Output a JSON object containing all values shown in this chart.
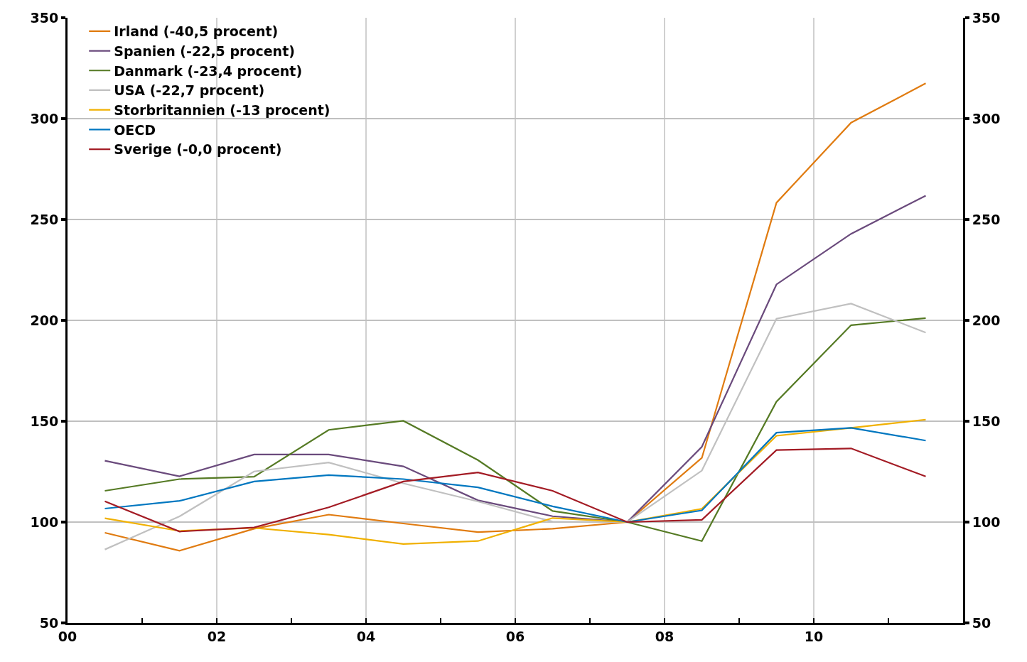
{
  "chart_data": {
    "type": "line",
    "x": [
      0.5,
      1.5,
      2.5,
      3.5,
      4.5,
      5.5,
      6.5,
      7.5,
      8.5,
      9.5,
      10.5,
      11.5
    ],
    "series": [
      {
        "name": "Irland (-40,5 procent)",
        "color": "#e07b10",
        "values": [
          94.7,
          85.8,
          96.7,
          103.7,
          99.3,
          95,
          96.7,
          100,
          131.8,
          258.3,
          298,
          317.5
        ]
      },
      {
        "name": "Spanien (-22,5 procent)",
        "color": "#6a4a7c",
        "values": [
          130.4,
          122.7,
          133.5,
          133.5,
          127.6,
          110.8,
          102.9,
          100,
          137.3,
          217.8,
          242.9,
          261.8
        ]
      },
      {
        "name": "Danmark (-23,4 procent)",
        "color": "#557a24",
        "values": [
          115.5,
          121.3,
          122.5,
          145.7,
          150.2,
          130.7,
          105.5,
          100,
          90.6,
          159.7,
          197.6,
          201.1
        ]
      },
      {
        "name": "USA (-22,7 procent)",
        "color": "#c0c0c0",
        "values": [
          86.4,
          102.8,
          125.1,
          129.5,
          119.2,
          110.2,
          100.2,
          100,
          125.5,
          200.8,
          208.3,
          193.9
        ]
      },
      {
        "name": "Storbritannien (-13 procent)",
        "color": "#f0b000",
        "values": [
          101.9,
          95.6,
          97.1,
          93.8,
          89.1,
          90.6,
          102,
          100,
          106.6,
          142.8,
          146.7,
          150.8
        ]
      },
      {
        "name": "OECD",
        "color": "#0077c0",
        "values": [
          106.7,
          110.5,
          120.1,
          123.3,
          121.3,
          117.2,
          107.8,
          100,
          105.8,
          144.3,
          146.7,
          140.4
        ]
      },
      {
        "name": "Sverige (-0,0 procent)",
        "color": "#a31b24",
        "values": [
          110.3,
          95.3,
          97.3,
          107.3,
          120.1,
          124.6,
          115.5,
          100,
          101.1,
          135.7,
          136.5,
          122.6
        ]
      }
    ],
    "xlim": [
      0,
      12
    ],
    "xticks": [
      {
        "value": 0,
        "label": "00"
      },
      {
        "value": 1,
        "label": null
      },
      {
        "value": 2,
        "label": "02"
      },
      {
        "value": 3,
        "label": null
      },
      {
        "value": 4,
        "label": "04"
      },
      {
        "value": 5,
        "label": null
      },
      {
        "value": 6,
        "label": "06"
      },
      {
        "value": 7,
        "label": null
      },
      {
        "value": 8,
        "label": "08"
      },
      {
        "value": 9,
        "label": null
      },
      {
        "value": 10,
        "label": "10"
      },
      {
        "value": 11,
        "label": null
      },
      {
        "value": 12,
        "label": null
      }
    ],
    "ylim": [
      50,
      350
    ],
    "yticks": [
      50,
      100,
      150,
      200,
      250,
      300,
      350
    ],
    "y2lim": [
      50,
      350
    ],
    "y2ticks": [
      50,
      100,
      150,
      200,
      250,
      300,
      350
    ],
    "grid": true,
    "legend": "top left",
    "marker": "none",
    "line_style": "solid"
  }
}
